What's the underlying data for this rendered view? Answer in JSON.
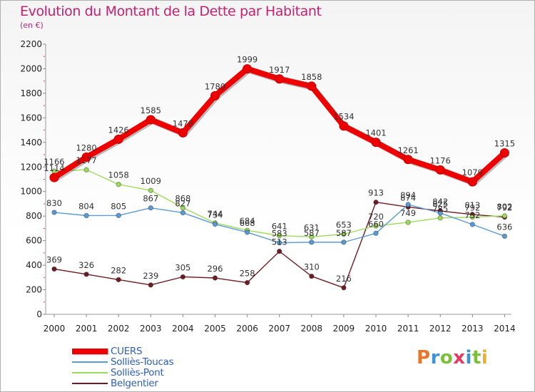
{
  "header": {
    "title": "Evolution du Montant de la Dette par Habitant",
    "subtitle": "(en €)"
  },
  "brand": {
    "text": "Proxiti",
    "letter_colors": [
      "#e8762b",
      "#3f93d2",
      "#7cbf3a",
      "#e43b5f",
      "#3f93d2",
      "#7cbf3a",
      "#e8b02b"
    ]
  },
  "chart_data": {
    "type": "line",
    "title": "Evolution du Montant de la Dette par Habitant",
    "subtitle": "(en €)",
    "xlabel": "",
    "ylabel": "",
    "x": [
      "2000",
      "2001",
      "2002",
      "2003",
      "2004",
      "2005",
      "2006",
      "2007",
      "2008",
      "2009",
      "2010",
      "2011",
      "2012",
      "2013",
      "2014"
    ],
    "ylim": [
      0,
      2200
    ],
    "yticks": [
      "0",
      "200",
      "400",
      "600",
      "800",
      "1000",
      "1200",
      "1400",
      "1600",
      "1800",
      "2000",
      "2200"
    ],
    "grid": false,
    "legend_position": "bottom-left",
    "series": [
      {
        "name": "Belgentier",
        "color": "#6e1c24",
        "values": [
          369,
          326,
          282,
          239,
          305,
          296,
          258,
          513,
          310,
          216,
          913,
          874,
          842,
          813,
          792
        ],
        "labels": [
          "369",
          "326",
          "282",
          "239",
          "305",
          "296",
          "258",
          "513",
          "310",
          "216",
          "913",
          "874",
          "842",
          "813",
          "792"
        ]
      },
      {
        "name": "Solliès-Pont",
        "color": "#9ddc5a",
        "values": [
          1166,
          1177,
          1058,
          1009,
          868,
          744,
          684,
          641,
          631,
          653,
          720,
          749,
          785,
          792,
          802
        ],
        "labels": [
          "1166",
          "1177",
          "1058",
          "1009",
          "868",
          "744",
          "684",
          "641",
          "631",
          "653",
          "720",
          "749",
          "785",
          "792",
          "802"
        ]
      },
      {
        "name": "Solliès-Toucas",
        "color": "#5a9bd5",
        "values": [
          830,
          804,
          805,
          867,
          827,
          734,
          668,
          583,
          587,
          587,
          660,
          894,
          825,
          732,
          636
        ],
        "labels": [
          "830",
          "804",
          "805",
          "867",
          "827",
          "734",
          "668",
          "583",
          "587",
          "587",
          "660",
          "894",
          "825",
          "732",
          "636"
        ]
      },
      {
        "name": "CUERS",
        "color": "#ee0000",
        "values": [
          1114,
          1280,
          1426,
          1585,
          1478,
          1780,
          1999,
          1917,
          1858,
          1534,
          1401,
          1261,
          1176,
          1079,
          1315
        ],
        "labels": [
          "1114",
          "1280",
          "1426",
          "1585",
          "1478",
          "1780",
          "1999",
          "1917",
          "1858",
          "1534",
          "1401",
          "1261",
          "1176",
          "1079",
          "1315"
        ]
      }
    ],
    "legend": [
      "CUERS",
      "Solliès-Toucas",
      "Solliès-Pont",
      "Belgentier"
    ]
  }
}
